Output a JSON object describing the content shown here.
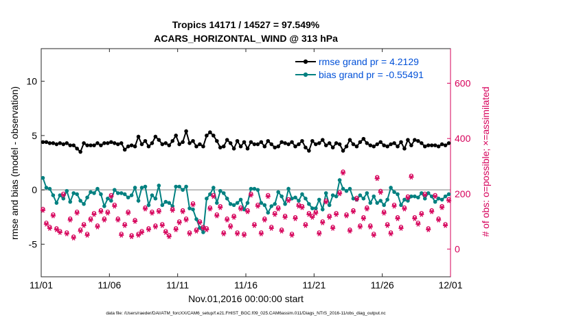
{
  "chart_data": {
    "type": "line",
    "title": "Tropics 14171 / 14527 = 97.549%",
    "subtitle": "ACARS_HORIZONTAL_WIND @ 313 hPa",
    "xlabel": "Nov.01,2016 00:00:00 start",
    "ylabel": "rmse and bias (model - observation)",
    "y2label": "# of obs: o=possible; ×=assimilated",
    "footnote": "data file: /Users/raeder/DAI/ATM_forcXX/CAM6_setup/f.e21.FHIST_BGC.f09_025.CAM6assim.011/Diags_NTrS_2016-11/obs_diag_output.nc",
    "xlim": [
      0,
      30
    ],
    "ylim": [
      -8,
      13
    ],
    "y2lim": [
      -100,
      725
    ],
    "xticks": [
      0,
      5,
      10,
      15,
      20,
      25,
      30
    ],
    "xticklabels": [
      "11/01",
      "11/06",
      "11/11",
      "11/16",
      "11/21",
      "11/26",
      "12/01"
    ],
    "yticks": [
      -5,
      0,
      5,
      10
    ],
    "yticklabels": [
      "-5",
      "0",
      "5",
      "10"
    ],
    "y2ticks": [
      0,
      200,
      400,
      600
    ],
    "y2ticklabels": [
      "0",
      "200",
      "400",
      "600"
    ],
    "zero_line": 0,
    "legend_position": "top-right",
    "series": [
      {
        "name": "rmse grand pr = 4.2129",
        "axis": "left",
        "color": "#000000",
        "marker": "circle",
        "values": [
          4.4,
          4.4,
          4.3,
          4.3,
          4.2,
          4.3,
          4.2,
          4.3,
          4.1,
          4.1,
          3.8,
          3.5,
          4.3,
          4.1,
          4.1,
          4.1,
          4.3,
          4.1,
          4.3,
          4.3,
          4.4,
          4.3,
          4.2,
          4.3,
          3.7,
          4.0,
          4.1,
          4.0,
          4.9,
          4.2,
          4.5,
          4.0,
          4.3,
          4.9,
          4.6,
          4.2,
          4.3,
          4.1,
          4.5,
          5.0,
          4.2,
          4.4,
          5.4,
          4.3,
          4.5,
          4.0,
          4.2,
          4.0,
          5.0,
          5.3,
          5.0,
          4.5,
          3.9,
          4.0,
          4.6,
          4.3,
          3.8,
          4.5,
          4.0,
          4.4,
          3.8,
          4.4,
          4.2,
          4.2,
          4.4,
          4.0,
          4.5,
          4.2,
          3.9,
          4.0,
          4.4,
          4.3,
          4.2,
          4.4,
          4.0,
          4.2,
          4.5,
          3.9,
          3.6,
          4.5,
          4.2,
          4.3,
          4.6,
          4.1,
          4.3,
          3.9,
          4.3,
          4.2,
          3.6,
          4.0,
          4.6,
          4.2,
          4.0,
          4.4,
          4.7,
          4.3,
          4.1,
          4.0,
          4.2,
          4.4,
          4.1,
          4.0,
          4.2,
          4.3,
          4.0,
          4.4,
          3.8,
          4.6,
          4.1,
          4.6,
          4.5,
          4.3,
          4.0,
          4.1,
          4.1,
          4.1,
          4.0,
          4.2,
          4.1,
          4.3
        ]
      },
      {
        "name": "bias grand pr = -0.55491",
        "axis": "left",
        "color": "#008080",
        "marker": "circle",
        "values": [
          1.1,
          0.2,
          0.1,
          -0.5,
          -1.2,
          -0.5,
          -0.8,
          -0.1,
          -1.1,
          -0.3,
          -0.4,
          -1.0,
          -1.3,
          -0.7,
          -0.2,
          -0.3,
          0.1,
          -0.4,
          -1.5,
          -0.8,
          -1.0,
          0.0,
          -0.3,
          -0.3,
          -0.4,
          -0.7,
          -0.5,
          0.2,
          -1.0,
          0.2,
          0.3,
          -1.4,
          -0.5,
          -0.8,
          0.4,
          -1.4,
          -1.1,
          -1.2,
          -1.5,
          0.3,
          0.3,
          0.0,
          0.3,
          -1.7,
          -1.8,
          -2.7,
          -3.5,
          -3.9,
          -0.8,
          -0.4,
          0.2,
          -1.2,
          -0.1,
          -0.3,
          -0.8,
          -1.3,
          -1.4,
          -1.2,
          -0.9,
          -1.8,
          -1.2,
          0.1,
          0.1,
          0.0,
          -1.2,
          -1.4,
          -2.1,
          -1.5,
          -1.3,
          -0.2,
          -0.6,
          -1.3,
          0.1,
          -0.8,
          -0.7,
          -1.0,
          -0.4,
          -0.8,
          -1.3,
          -1.7,
          -1.7,
          -0.9,
          -1.8,
          -0.3,
          -1.4,
          -0.5,
          -0.6,
          0.9,
          0.1,
          -0.1,
          0.1,
          -0.8,
          -0.9,
          -0.5,
          -0.8,
          -0.3,
          -1.2,
          -0.6,
          -1.2,
          -1.0,
          -1.4,
          -0.9,
          0.2,
          -0.2,
          -0.4,
          -1.4,
          -0.9,
          -1.0,
          -0.6,
          -0.6,
          -0.7,
          -0.3,
          -0.8,
          -0.3,
          -0.6,
          -1.1,
          -0.8,
          -0.9,
          -0.6,
          -0.4
        ]
      },
      {
        "name": "# of obs possible",
        "axis": "right",
        "color": "#d6005a",
        "marker": "circle-open",
        "values": [
          145,
          95,
          80,
          125,
          75,
          65,
          200,
          60,
          110,
          45,
          135,
          70,
          90,
          55,
          110,
          130,
          85,
          140,
          110,
          135,
          195,
          160,
          110,
          55,
          90,
          135,
          50,
          105,
          55,
          65,
          150,
          75,
          135,
          85,
          140,
          90,
          65,
          50,
          145,
          75,
          100,
          140,
          110,
          60,
          165,
          70,
          100,
          80,
          75,
          150,
          195,
          125,
          155,
          60,
          110,
          85,
          120,
          60,
          150,
          55,
          140,
          200,
          90,
          160,
          60,
          110,
          195,
          80,
          130,
          150,
          70,
          120,
          180,
          55,
          115,
          160,
          155,
          90,
          130,
          120,
          135,
          60,
          100,
          175,
          120,
          80,
          130,
          205,
          280,
          125,
          70,
          140,
          185,
          85,
          115,
          150,
          85,
          55,
          260,
          210,
          135,
          90,
          60,
          160,
          115,
          80,
          150,
          190,
          265,
          115,
          95,
          130,
          200,
          75,
          140,
          195,
          110,
          155,
          90,
          180
        ]
      },
      {
        "name": "# of obs assimilated",
        "axis": "right",
        "color": "#d6005a",
        "marker": "asterisk",
        "values": [
          140,
          90,
          75,
          120,
          70,
          60,
          195,
          55,
          105,
          40,
          130,
          65,
          85,
          50,
          105,
          125,
          80,
          135,
          105,
          130,
          190,
          155,
          105,
          50,
          85,
          130,
          45,
          100,
          50,
          60,
          145,
          70,
          130,
          80,
          135,
          85,
          60,
          45,
          140,
          70,
          95,
          135,
          105,
          55,
          160,
          65,
          95,
          75,
          70,
          145,
          190,
          120,
          150,
          55,
          105,
          80,
          115,
          55,
          145,
          50,
          135,
          195,
          85,
          155,
          55,
          105,
          190,
          75,
          125,
          145,
          65,
          115,
          175,
          50,
          110,
          155,
          150,
          85,
          125,
          115,
          130,
          55,
          95,
          170,
          115,
          75,
          125,
          200,
          275,
          120,
          65,
          135,
          180,
          80,
          110,
          145,
          80,
          50,
          255,
          205,
          130,
          85,
          55,
          155,
          110,
          75,
          145,
          185,
          260,
          110,
          90,
          125,
          195,
          70,
          135,
          190,
          105,
          150,
          85,
          175
        ]
      }
    ]
  }
}
